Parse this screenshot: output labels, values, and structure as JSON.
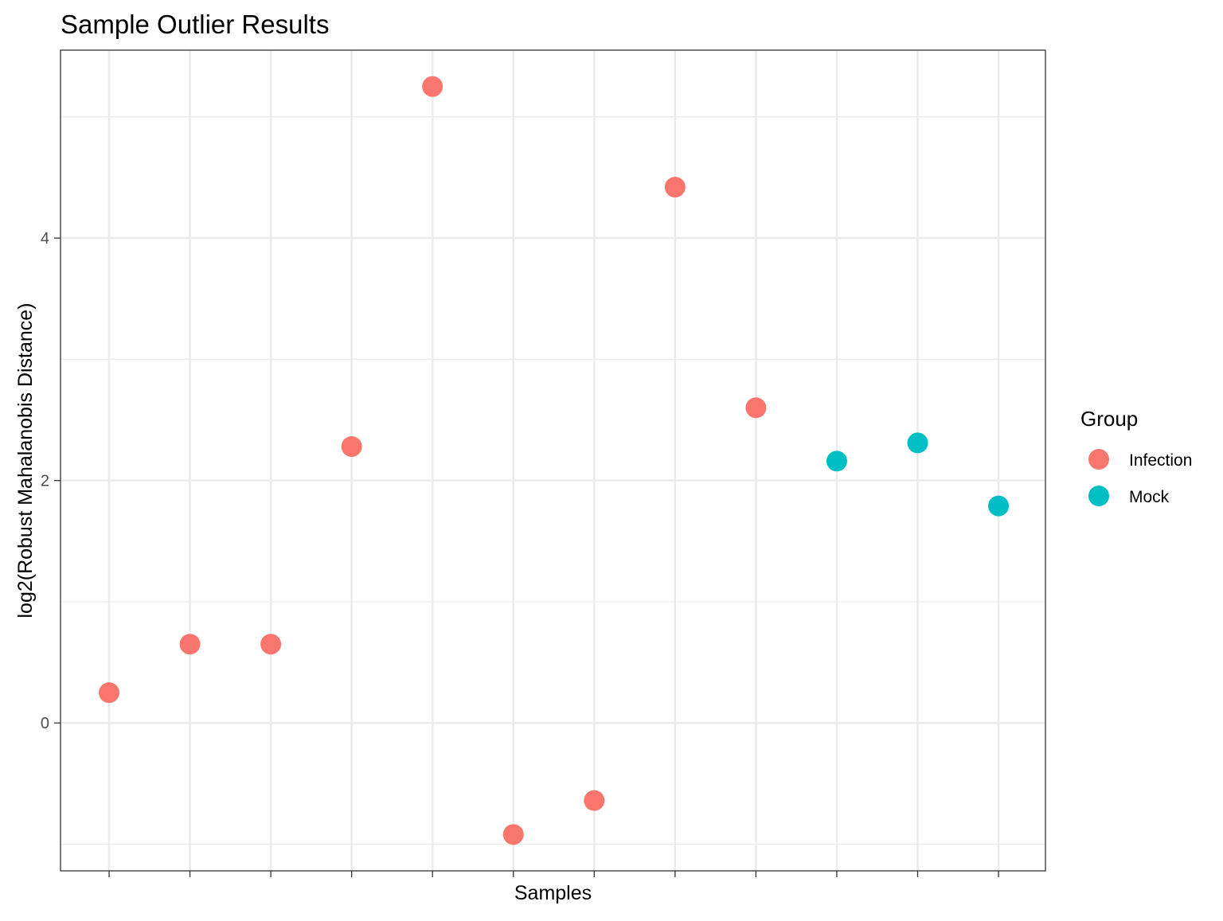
{
  "chart_data": {
    "type": "scatter",
    "title": "Sample Outlier Results",
    "xlabel": "Samples",
    "ylabel": "log2(Robust Mahalanobis Distance)",
    "ylim": [
      -1.22,
      5.55
    ],
    "y_ticks": [
      0,
      2,
      4
    ],
    "y_minor_ticks": [
      -1,
      1,
      3,
      5
    ],
    "x_count": 12,
    "grid": true,
    "legend": {
      "title": "Group",
      "placement": "right",
      "entries": [
        {
          "name": "Infection",
          "color": "#F8766D"
        },
        {
          "name": "Mock",
          "color": "#00BFC4"
        }
      ]
    },
    "points": [
      {
        "x": 1,
        "y": 0.25,
        "group": "Infection"
      },
      {
        "x": 2,
        "y": 0.65,
        "group": "Infection"
      },
      {
        "x": 3,
        "y": 0.65,
        "group": "Infection"
      },
      {
        "x": 4,
        "y": 2.28,
        "group": "Infection"
      },
      {
        "x": 5,
        "y": 5.25,
        "group": "Infection"
      },
      {
        "x": 6,
        "y": -0.92,
        "group": "Infection"
      },
      {
        "x": 7,
        "y": -0.64,
        "group": "Infection"
      },
      {
        "x": 8,
        "y": 4.42,
        "group": "Infection"
      },
      {
        "x": 9,
        "y": 2.6,
        "group": "Infection"
      },
      {
        "x": 10,
        "y": 2.16,
        "group": "Mock"
      },
      {
        "x": 11,
        "y": 2.31,
        "group": "Mock"
      },
      {
        "x": 12,
        "y": 1.79,
        "group": "Mock"
      }
    ]
  }
}
